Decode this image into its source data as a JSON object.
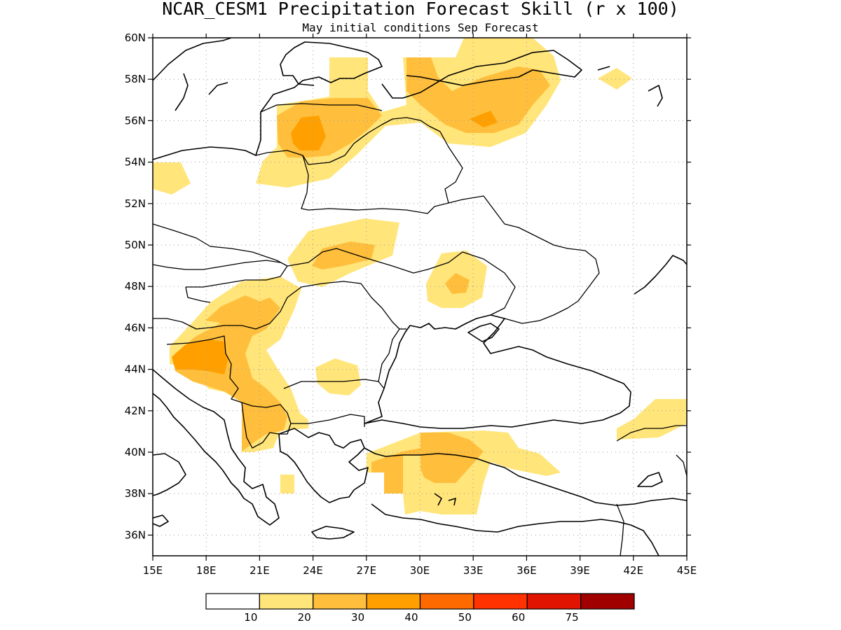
{
  "title": "NCAR_CESM1 Precipitation Forecast Skill (r x 100)",
  "subtitle": "May initial conditions  Sep Forecast",
  "map": {
    "lon_range": [
      15,
      45
    ],
    "lat_range": [
      35,
      60
    ],
    "x_ticks": [
      "15E",
      "18E",
      "21E",
      "24E",
      "27E",
      "30E",
      "33E",
      "36E",
      "39E",
      "42E",
      "45E"
    ],
    "y_ticks": [
      "36N",
      "38N",
      "40N",
      "42N",
      "44N",
      "46N",
      "48N",
      "50N",
      "52N",
      "54N",
      "56N",
      "58N",
      "60N"
    ],
    "grid": "dotted"
  },
  "colorbar": {
    "colors": [
      "#ffffff",
      "#ffe57a",
      "#ffbf3c",
      "#ffa000",
      "#ff6a00",
      "#ff3200",
      "#e01400",
      "#a00000"
    ],
    "labels": [
      "10",
      "20",
      "30",
      "40",
      "50",
      "60",
      "75"
    ]
  }
}
